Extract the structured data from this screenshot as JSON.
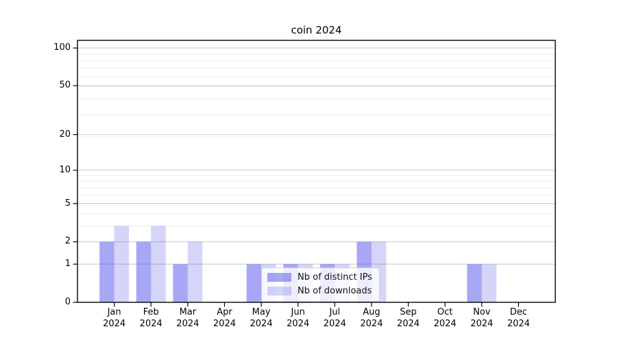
{
  "chart_data": {
    "type": "bar",
    "title": "coin 2024",
    "categories": [
      "Jan",
      "Feb",
      "Mar",
      "Apr",
      "May",
      "Jun",
      "Jul",
      "Aug",
      "Sep",
      "Oct",
      "Nov",
      "Dec"
    ],
    "year_label": "2024",
    "series": [
      {
        "name": "Nb of distinct IPs",
        "color": "rgba(80,80,235,0.5)",
        "values": [
          2,
          2,
          1,
          0,
          1,
          1,
          1,
          2,
          0,
          0,
          1,
          0
        ]
      },
      {
        "name": "Nb of downloads",
        "color": "rgba(80,80,235,0.24)",
        "values": [
          3,
          3,
          2,
          0,
          1,
          1,
          1,
          2,
          0,
          0,
          1,
          0
        ]
      }
    ],
    "yticks": [
      0,
      1,
      2,
      5,
      10,
      20,
      50,
      100
    ],
    "yscale": "log10(1+v)",
    "ylim": [
      0,
      116
    ],
    "grid": "both",
    "legend_position": "lower center-left, overlapping May-Aug bars",
    "colors": {
      "axis": "#000000",
      "grid_major": "#c6c6c6",
      "grid_minor": "#ececec",
      "background": "#ffffff"
    }
  }
}
